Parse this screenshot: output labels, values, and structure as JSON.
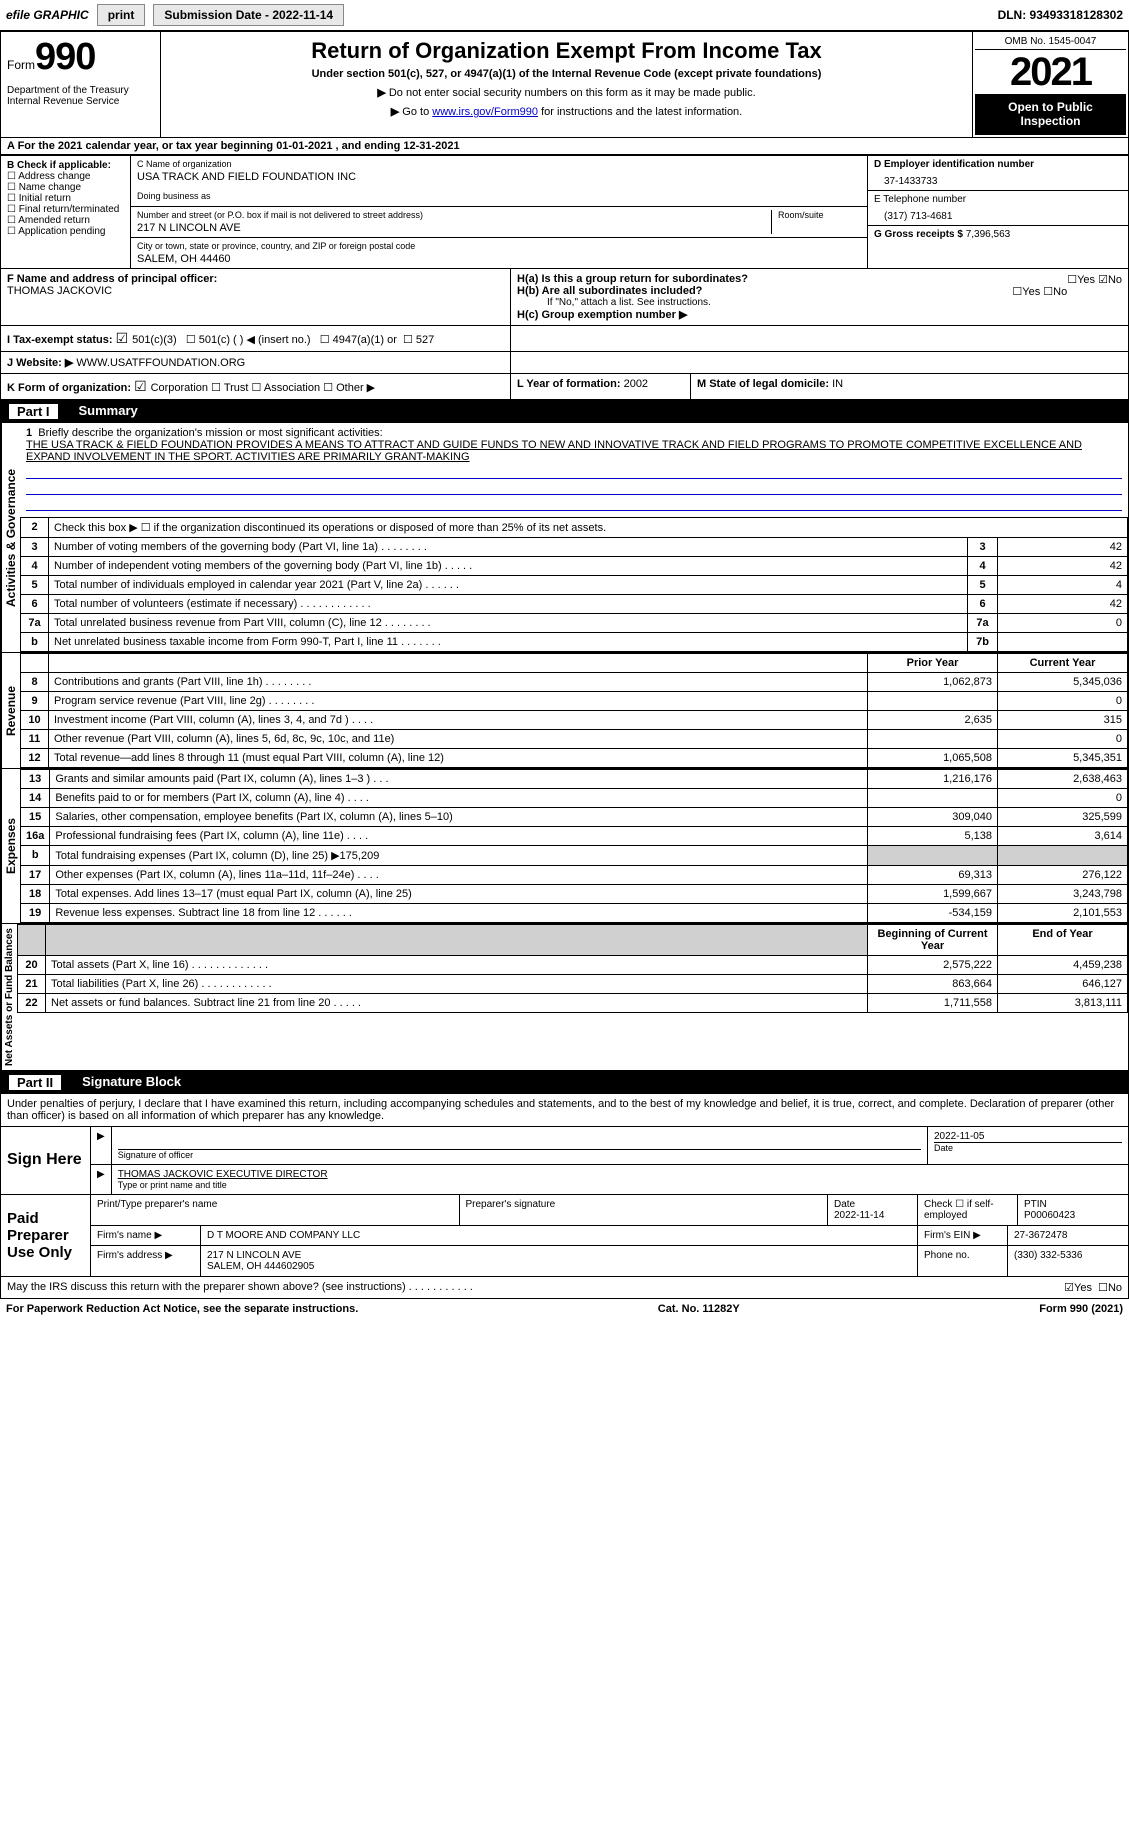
{
  "topbar": {
    "efile_label": "efile GRAPHIC",
    "print_btn": "print",
    "sub_date_label": "Submission Date - 2022-11-14",
    "dln_label": "DLN: 93493318128302"
  },
  "header": {
    "form_word": "Form",
    "form_num": "990",
    "dept": "Department of the Treasury\nInternal Revenue Service",
    "title": "Return of Organization Exempt From Income Tax",
    "subtitle": "Under section 501(c), 527, or 4947(a)(1) of the Internal Revenue Code (except private foundations)",
    "inst1": "Do not enter social security numbers on this form as it may be made public.",
    "inst2_pre": "Go to ",
    "inst2_link": "www.irs.gov/Form990",
    "inst2_post": " for instructions and the latest information.",
    "omb": "OMB No. 1545-0047",
    "year": "2021",
    "open": "Open to Public Inspection"
  },
  "lineA": "A For the 2021 calendar year, or tax year beginning 01-01-2021   , and ending 12-31-2021",
  "colB": {
    "hdr": "B Check if applicable:",
    "items": [
      "Address change",
      "Name change",
      "Initial return",
      "Final return/terminated",
      "Amended return",
      "Application pending"
    ]
  },
  "colC": {
    "name_lbl": "C Name of organization",
    "name_val": "USA TRACK AND FIELD FOUNDATION INC",
    "dba_lbl": "Doing business as",
    "dba_val": "",
    "street_lbl": "Number and street (or P.O. box if mail is not delivered to street address)",
    "street_val": "217 N LINCOLN AVE",
    "room_lbl": "Room/suite",
    "room_val": "",
    "city_lbl": "City or town, state or province, country, and ZIP or foreign postal code",
    "city_val": "SALEM, OH  44460"
  },
  "colD": {
    "ein_lbl": "D Employer identification number",
    "ein_val": "37-1433733",
    "tel_lbl": "E Telephone number",
    "tel_val": "(317) 713-4681",
    "gross_lbl": "G Gross receipts $",
    "gross_val": "7,396,563"
  },
  "rowF": {
    "f_lbl": "F Name and address of principal officer:",
    "f_val": "THOMAS JACKOVIC",
    "ha_lbl": "H(a)  Is this a group return for subordinates?",
    "ha_yes": "Yes",
    "ha_no": "No",
    "hb_lbl": "H(b)  Are all subordinates included?",
    "hb_note": "If \"No,\" attach a list. See instructions.",
    "hc_lbl": "H(c)  Group exemption number ▶"
  },
  "rowI": {
    "lbl": "I   Tax-exempt status:",
    "o1": "501(c)(3)",
    "o2": "501(c) (  ) ◀ (insert no.)",
    "o3": "4947(a)(1) or",
    "o4": "527"
  },
  "rowJ": {
    "lbl": "J   Website: ▶",
    "val": "WWW.USATFFOUNDATION.ORG"
  },
  "rowK": {
    "lbl": "K Form of organization:",
    "o1": "Corporation",
    "o2": "Trust",
    "o3": "Association",
    "o4": "Other ▶",
    "l_lbl": "L Year of formation:",
    "l_val": "2002",
    "m_lbl": "M State of legal domicile:",
    "m_val": "IN"
  },
  "part1": {
    "num": "Part I",
    "title": "Summary"
  },
  "activities_label": "Activities & Governance",
  "mission": {
    "num": "1",
    "lbl": "Briefly describe the organization's mission or most significant activities:",
    "text": "THE USA TRACK & FIELD FOUNDATION PROVIDES A MEANS TO ATTRACT AND GUIDE FUNDS TO NEW AND INNOVATIVE TRACK AND FIELD PROGRAMS TO PROMOTE COMPETITIVE EXCELLENCE AND EXPAND INVOLVEMENT IN THE SPORT. ACTIVITIES ARE PRIMARILY GRANT-MAKING"
  },
  "gov_rows": [
    {
      "n": "2",
      "t": "Check this box ▶ ☐  if the organization discontinued its operations or disposed of more than 25% of its net assets.",
      "box": "",
      "v": ""
    },
    {
      "n": "3",
      "t": "Number of voting members of the governing body (Part VI, line 1a)    .    .    .    .    .    .    .    .",
      "box": "3",
      "v": "42"
    },
    {
      "n": "4",
      "t": "Number of independent voting members of the governing body (Part VI, line 1b)   .    .    .    .    .",
      "box": "4",
      "v": "42"
    },
    {
      "n": "5",
      "t": "Total number of individuals employed in calendar year 2021 (Part V, line 2a)    .    .    .    .    .    .",
      "box": "5",
      "v": "4"
    },
    {
      "n": "6",
      "t": "Total number of volunteers (estimate if necessary)     .    .    .    .    .    .    .    .    .    .    .    .",
      "box": "6",
      "v": "42"
    },
    {
      "n": "7a",
      "t": "Total unrelated business revenue from Part VIII, column (C), line 12    .    .    .    .    .    .    .    .",
      "box": "7a",
      "v": "0"
    },
    {
      "n": "b",
      "t": "Net unrelated business taxable income from Form 990-T, Part I, line 11    .    .    .    .    .    .    .",
      "box": "7b",
      "v": ""
    }
  ],
  "revexp_hdr": {
    "prior": "Prior Year",
    "curr": "Current Year"
  },
  "revenue_label": "Revenue",
  "revenue_rows": [
    {
      "n": "8",
      "t": "Contributions and grants (Part VIII, line 1h)    .    .    .    .    .    .    .    .",
      "p": "1,062,873",
      "c": "5,345,036"
    },
    {
      "n": "9",
      "t": "Program service revenue (Part VIII, line 2g)    .    .    .    .    .    .    .    .",
      "p": "",
      "c": "0"
    },
    {
      "n": "10",
      "t": "Investment income (Part VIII, column (A), lines 3, 4, and 7d )    .    .    .    .",
      "p": "2,635",
      "c": "315"
    },
    {
      "n": "11",
      "t": "Other revenue (Part VIII, column (A), lines 5, 6d, 8c, 9c, 10c, and 11e)",
      "p": "",
      "c": "0"
    },
    {
      "n": "12",
      "t": "Total revenue—add lines 8 through 11 (must equal Part VIII, column (A), line 12)",
      "p": "1,065,508",
      "c": "5,345,351"
    }
  ],
  "expenses_label": "Expenses",
  "expenses_rows": [
    {
      "n": "13",
      "t": "Grants and similar amounts paid (Part IX, column (A), lines 1–3 )    .    .    .",
      "p": "1,216,176",
      "c": "2,638,463"
    },
    {
      "n": "14",
      "t": "Benefits paid to or for members (Part IX, column (A), line 4)    .    .    .    .",
      "p": "",
      "c": "0"
    },
    {
      "n": "15",
      "t": "Salaries, other compensation, employee benefits (Part IX, column (A), lines 5–10)",
      "p": "309,040",
      "c": "325,599"
    },
    {
      "n": "16a",
      "t": "Professional fundraising fees (Part IX, column (A), line 11e)    .    .    .    .",
      "p": "5,138",
      "c": "3,614"
    },
    {
      "n": "b",
      "t": "Total fundraising expenses (Part IX, column (D), line 25) ▶175,209",
      "p": "shade",
      "c": "shade"
    },
    {
      "n": "17",
      "t": "Other expenses (Part IX, column (A), lines 11a–11d, 11f–24e)    .    .    .    .",
      "p": "69,313",
      "c": "276,122"
    },
    {
      "n": "18",
      "t": "Total expenses. Add lines 13–17 (must equal Part IX, column (A), line 25)",
      "p": "1,599,667",
      "c": "3,243,798"
    },
    {
      "n": "19",
      "t": "Revenue less expenses. Subtract line 18 from line 12    .    .    .    .    .    .",
      "p": "-534,159",
      "c": "2,101,553"
    }
  ],
  "netassets_label": "Net Assets or Fund Balances",
  "na_hdr": {
    "beg": "Beginning of Current Year",
    "end": "End of Year"
  },
  "na_rows": [
    {
      "n": "20",
      "t": "Total assets (Part X, line 16)  .    .    .    .    .    .    .    .    .    .    .    .    .",
      "p": "2,575,222",
      "c": "4,459,238"
    },
    {
      "n": "21",
      "t": "Total liabilities (Part X, line 26)  .    .    .    .    .    .    .    .    .    .    .    .",
      "p": "863,664",
      "c": "646,127"
    },
    {
      "n": "22",
      "t": "Net assets or fund balances. Subtract line 21 from line 20    .    .    .    .    .",
      "p": "1,711,558",
      "c": "3,813,111"
    }
  ],
  "part2": {
    "num": "Part II",
    "title": "Signature Block"
  },
  "perjury": "Under penalties of perjury, I declare that I have examined this return, including accompanying schedules and statements, and to the best of my knowledge and belief, it is true, correct, and complete. Declaration of preparer (other than officer) is based on all information of which preparer has any knowledge.",
  "sign": {
    "lbl": "Sign Here",
    "sig_lbl": "Signature of officer",
    "date_val": "2022-11-05",
    "date_lbl": "Date",
    "name_val": "THOMAS JACKOVIC  EXECUTIVE DIRECTOR",
    "name_lbl": "Type or print name and title"
  },
  "preparer": {
    "lbl": "Paid Preparer Use Only",
    "r1": {
      "c1": "Print/Type preparer's name",
      "c2": "Preparer's signature",
      "c3": "Date\n2022-11-14",
      "c4": "Check ☐ if self-employed",
      "c5": "PTIN\nP00060423"
    },
    "r2": {
      "c1": "Firm's name    ▶",
      "c2": "D T MOORE AND COMPANY LLC",
      "c3": "Firm's EIN ▶",
      "c4": "27-3672478"
    },
    "r3": {
      "c1": "Firm's address ▶",
      "c2": "217 N LINCOLN AVE\nSALEM, OH  444602905",
      "c3": "Phone no.",
      "c4": "(330) 332-5336"
    }
  },
  "discuss": {
    "t": "May the IRS discuss this return with the preparer shown above? (see instructions)    .    .    .    .    .    .    .    .    .    .    .",
    "yes": "Yes",
    "no": "No"
  },
  "footer": {
    "l": "For Paperwork Reduction Act Notice, see the separate instructions.",
    "m": "Cat. No. 11282Y",
    "r": "Form 990 (2021)"
  }
}
